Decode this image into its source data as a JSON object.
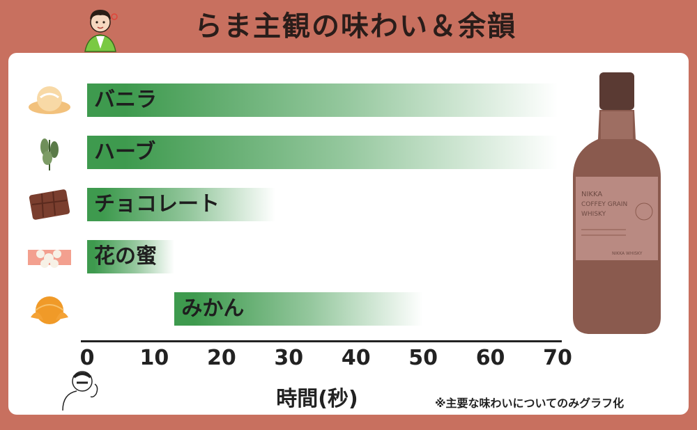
{
  "title": "らま主観の味わい＆余韻",
  "note": "※主要な味わいについてのみグラフ化",
  "colors": {
    "bar": "#3e9a4e",
    "background": "#c8705f",
    "panel": "#ffffff"
  },
  "chart_data": {
    "type": "bar",
    "orientation": "horizontal",
    "xlabel": "時間(秒)",
    "xlim": [
      0,
      70
    ],
    "xticks": [
      0,
      10,
      20,
      30,
      40,
      50,
      60,
      70
    ],
    "series": [
      {
        "label": "バニラ",
        "start": 0,
        "end": 70,
        "icon": "vanilla-icon"
      },
      {
        "label": "ハーブ",
        "start": 0,
        "end": 70,
        "icon": "herb-icon"
      },
      {
        "label": "チョコレート",
        "start": 0,
        "end": 28,
        "icon": "chocolate-icon"
      },
      {
        "label": "花の蜜",
        "start": 0,
        "end": 13,
        "icon": "honey-icon"
      },
      {
        "label": "みかん",
        "start": 13,
        "end": 50,
        "icon": "mandarin-icon"
      }
    ]
  },
  "bottle": {
    "brand": "NIKKA",
    "line1": "COFFEY GRAIN",
    "line2": "WHISKY",
    "maker": "NIKKA WHISKY"
  }
}
